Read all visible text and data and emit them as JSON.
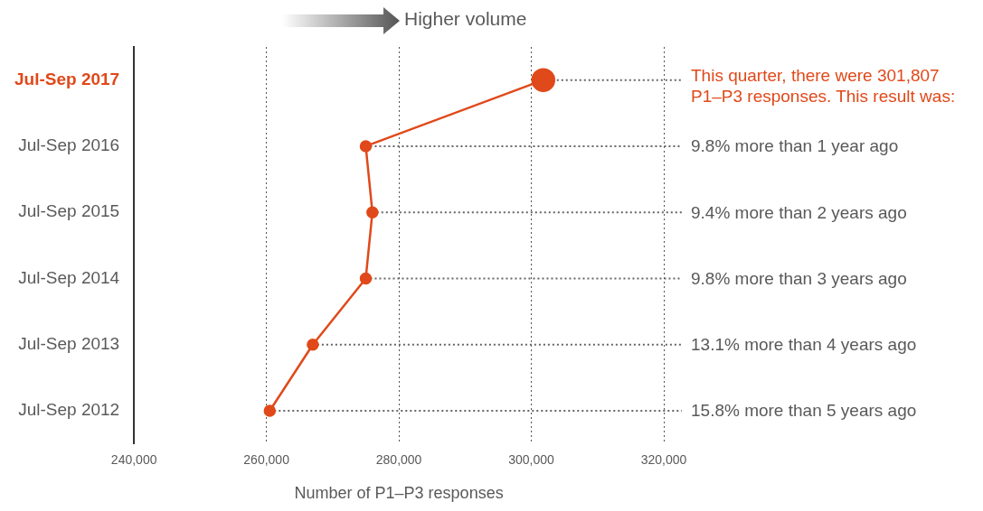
{
  "chart_data": {
    "type": "line",
    "orientation": "horizontal",
    "categories": [
      "Jul-Sep 2017",
      "Jul-Sep 2016",
      "Jul-Sep 2015",
      "Jul-Sep 2014",
      "Jul-Sep 2013",
      "Jul-Sep 2012"
    ],
    "values": [
      301807,
      275000,
      276000,
      275000,
      267000,
      260500
    ],
    "color": "#e0491a",
    "marker": "circle",
    "xlim": [
      240000,
      320000
    ],
    "xticks": [
      {
        "value": 240000,
        "label": "240,000"
      },
      {
        "value": 260000,
        "label": "260,000"
      },
      {
        "value": 280000,
        "label": "280,000"
      },
      {
        "value": 300000,
        "label": "300,000"
      },
      {
        "value": 320000,
        "label": "320,000"
      }
    ],
    "xlabel": "Number of P1–P3 responses",
    "grid": "x",
    "annotations": [
      "Higher volume",
      {
        "text": "This quarter, there were 301,807 P1–P3 responses. This result was:",
        "x": 301807,
        "y": "Jul-Sep 2017"
      },
      {
        "text": "9.8% more than 1 year ago",
        "x": 275000,
        "y": "Jul-Sep 2016"
      },
      {
        "text": "9.4% more than 2 years ago",
        "x": 276000,
        "y": "Jul-Sep 2015"
      },
      {
        "text": "9.8% more than 3 years ago",
        "x": 275000,
        "y": "Jul-Sep 2014"
      },
      {
        "text": "13.1% more than 4 years ago",
        "x": 267000,
        "y": "Jul-Sep 2013"
      },
      {
        "text": "15.8% more than 5 years ago",
        "x": 260500,
        "y": "Jul-Sep 2012"
      }
    ]
  }
}
